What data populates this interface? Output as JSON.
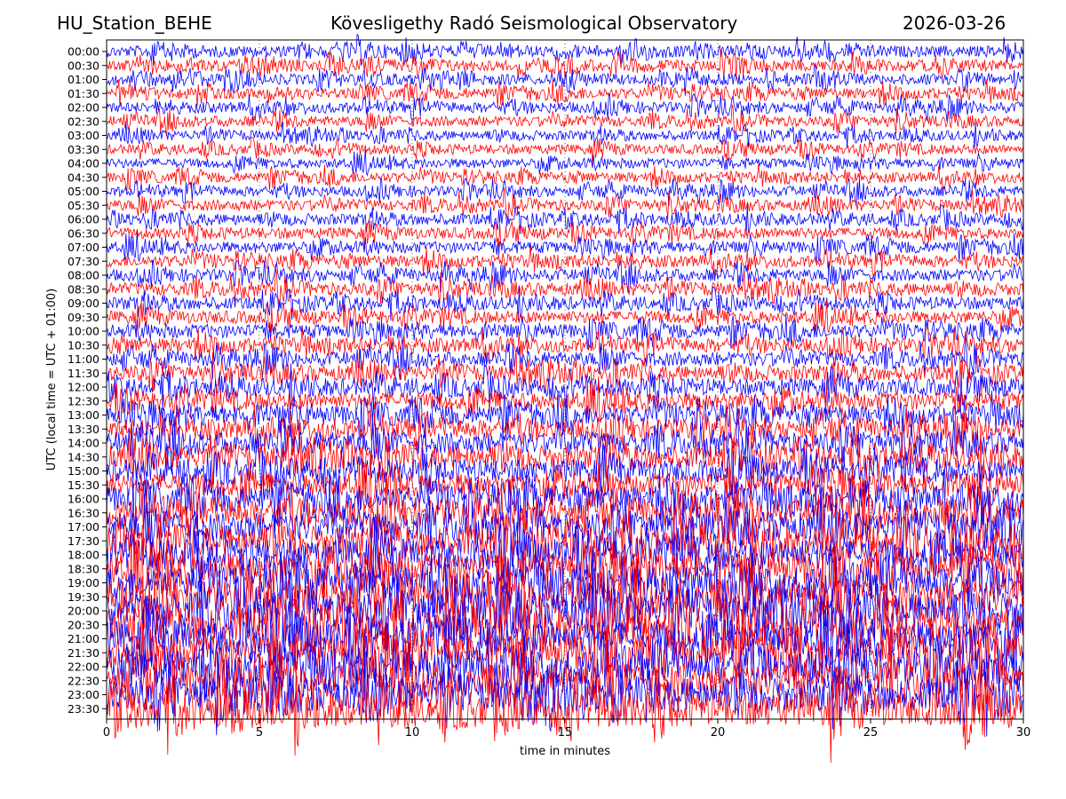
{
  "header": {
    "station": "HU_Station_BEHE",
    "title": "Kövesligethy Radó Seismological Observatory",
    "date": "2026-03-26"
  },
  "chart_data": {
    "type": "line",
    "title": "Kövesligethy Radó Seismological Observatory",
    "xlabel": "time in minutes",
    "ylabel": "UTC (local time = UTC + 01:00)",
    "xlim": [
      0,
      30
    ],
    "x_ticks": [
      "0",
      "5",
      "10",
      "15",
      "20",
      "25",
      "30"
    ],
    "grid": "vertical dotted lines at 5-minute intervals",
    "colors": [
      "#0000ff",
      "#ff0000"
    ],
    "series": [
      {
        "label": "00:00",
        "color": "#0000ff",
        "amplitude": 0.4
      },
      {
        "label": "00:30",
        "color": "#ff0000",
        "amplitude": 0.4
      },
      {
        "label": "01:00",
        "color": "#0000ff",
        "amplitude": 0.38
      },
      {
        "label": "01:30",
        "color": "#ff0000",
        "amplitude": 0.38
      },
      {
        "label": "02:00",
        "color": "#0000ff",
        "amplitude": 0.38
      },
      {
        "label": "02:30",
        "color": "#ff0000",
        "amplitude": 0.36
      },
      {
        "label": "03:00",
        "color": "#0000ff",
        "amplitude": 0.34
      },
      {
        "label": "03:30",
        "color": "#ff0000",
        "amplitude": 0.34
      },
      {
        "label": "04:00",
        "color": "#0000ff",
        "amplitude": 0.34
      },
      {
        "label": "04:30",
        "color": "#ff0000",
        "amplitude": 0.35
      },
      {
        "label": "05:00",
        "color": "#0000ff",
        "amplitude": 0.36
      },
      {
        "label": "05:30",
        "color": "#ff0000",
        "amplitude": 0.38
      },
      {
        "label": "06:00",
        "color": "#0000ff",
        "amplitude": 0.4
      },
      {
        "label": "06:30",
        "color": "#ff0000",
        "amplitude": 0.4
      },
      {
        "label": "07:00",
        "color": "#0000ff",
        "amplitude": 0.4
      },
      {
        "label": "07:30",
        "color": "#ff0000",
        "amplitude": 0.42
      },
      {
        "label": "08:00",
        "color": "#0000ff",
        "amplitude": 0.42
      },
      {
        "label": "08:30",
        "color": "#ff0000",
        "amplitude": 0.45
      },
      {
        "label": "09:00",
        "color": "#0000ff",
        "amplitude": 0.45
      },
      {
        "label": "09:30",
        "color": "#ff0000",
        "amplitude": 0.45
      },
      {
        "label": "10:00",
        "color": "#0000ff",
        "amplitude": 0.48
      },
      {
        "label": "10:30",
        "color": "#ff0000",
        "amplitude": 0.5
      },
      {
        "label": "11:00",
        "color": "#0000ff",
        "amplitude": 0.5
      },
      {
        "label": "11:30",
        "color": "#ff0000",
        "amplitude": 0.55
      },
      {
        "label": "12:00",
        "color": "#0000ff",
        "amplitude": 0.6
      },
      {
        "label": "12:30",
        "color": "#ff0000",
        "amplitude": 0.62
      },
      {
        "label": "13:00",
        "color": "#0000ff",
        "amplitude": 0.66
      },
      {
        "label": "13:30",
        "color": "#ff0000",
        "amplitude": 0.7
      },
      {
        "label": "14:00",
        "color": "#0000ff",
        "amplitude": 0.75
      },
      {
        "label": "14:30",
        "color": "#ff0000",
        "amplitude": 0.8
      },
      {
        "label": "15:00",
        "color": "#0000ff",
        "amplitude": 0.8
      },
      {
        "label": "15:30",
        "color": "#ff0000",
        "amplitude": 0.82
      },
      {
        "label": "16:00",
        "color": "#0000ff",
        "amplitude": 0.9
      },
      {
        "label": "16:30",
        "color": "#ff0000",
        "amplitude": 0.95
      },
      {
        "label": "17:00",
        "color": "#0000ff",
        "amplitude": 1.0
      },
      {
        "label": "17:30",
        "color": "#ff0000",
        "amplitude": 1.05
      },
      {
        "label": "18:00",
        "color": "#0000ff",
        "amplitude": 1.1
      },
      {
        "label": "18:30",
        "color": "#ff0000",
        "amplitude": 1.1
      },
      {
        "label": "19:00",
        "color": "#0000ff",
        "amplitude": 1.15
      },
      {
        "label": "19:30",
        "color": "#ff0000",
        "amplitude": 1.2
      },
      {
        "label": "20:00",
        "color": "#0000ff",
        "amplitude": 1.25
      },
      {
        "label": "20:30",
        "color": "#ff0000",
        "amplitude": 1.25
      },
      {
        "label": "21:00",
        "color": "#0000ff",
        "amplitude": 1.25
      },
      {
        "label": "21:30",
        "color": "#ff0000",
        "amplitude": 1.2
      },
      {
        "label": "22:00",
        "color": "#0000ff",
        "amplitude": 1.2
      },
      {
        "label": "22:30",
        "color": "#ff0000",
        "amplitude": 1.15
      },
      {
        "label": "23:00",
        "color": "#0000ff",
        "amplitude": 1.15
      },
      {
        "label": "23:30",
        "color": "#ff0000",
        "amplitude": 1.2
      }
    ]
  }
}
